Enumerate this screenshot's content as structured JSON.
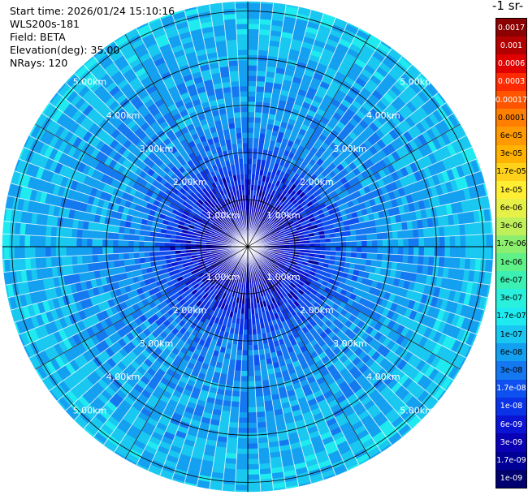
{
  "info": {
    "start_time": "Start time: 2026/01/24 15:10:16",
    "instrument": "WLS200s-181",
    "field": "Field: BETA",
    "elevation": "Elevation(deg): 35.00",
    "nrays": "NRays: 120"
  },
  "colorbar": {
    "unit_title": "-1 sr-",
    "labels": [
      "0.0017",
      "0.001",
      "0.0006",
      "0.0003",
      "0.00017",
      "0.0001",
      "6e-05",
      "3e-05",
      "1.7e-05",
      "1e-05",
      "6e-06",
      "3e-06",
      "1.7e-06",
      "1e-06",
      "6e-07",
      "3e-07",
      "1.7e-07",
      "1e-07",
      "6e-08",
      "3e-08",
      "1.7e-08",
      "1e-08",
      "6e-09",
      "3e-09",
      "1.7e-09",
      "1e-09"
    ],
    "colors": [
      "#8b0000",
      "#b30000",
      "#e00000",
      "#ff2a00",
      "#ff5500",
      "#ff7f00",
      "#ff9900",
      "#ffb300",
      "#ffd11a",
      "#ffee33",
      "#e6f046",
      "#bff05a",
      "#8cee6e",
      "#5ff087",
      "#3cf0b4",
      "#28f0dc",
      "#1eeaf0",
      "#19c8f0",
      "#14a0f0",
      "#1478f0",
      "#0f50f0",
      "#0a32e6",
      "#0a14d2",
      "#0a00b4",
      "#000096",
      "#00006e"
    ]
  },
  "chart_data": {
    "type": "heatmap",
    "projection": "polar PPI",
    "nrays": 120,
    "elevation_deg": 35.0,
    "field": "BETA",
    "range_rings_km": [
      1,
      2,
      3,
      4,
      5
    ],
    "range_ring_labels": [
      "1.00km",
      "2.00km",
      "3.00km",
      "4.00km",
      "5.00km"
    ],
    "max_range_km": 5.2,
    "color_scale": "log",
    "value_range": [
      1e-09,
      0.0017
    ],
    "radial_profile": [
      {
        "range_km": 0.0,
        "log10_beta": -8.4
      },
      {
        "range_km": 0.4,
        "log10_beta": -8.6
      },
      {
        "range_km": 0.8,
        "log10_beta": -8.4
      },
      {
        "range_km": 1.2,
        "log10_beta": -8.1
      },
      {
        "range_km": 1.6,
        "log10_beta": -7.9
      },
      {
        "range_km": 2.0,
        "log10_beta": -7.6
      },
      {
        "range_km": 2.5,
        "log10_beta": -7.4
      },
      {
        "range_km": 3.0,
        "log10_beta": -7.3
      },
      {
        "range_km": 3.5,
        "log10_beta": -7.3
      },
      {
        "range_km": 4.0,
        "log10_beta": -7.2
      },
      {
        "range_km": 4.5,
        "log10_beta": -7.1
      },
      {
        "range_km": 5.2,
        "log10_beta": -7.0
      }
    ],
    "grid_spokes_deg": [
      0,
      30,
      60,
      90,
      120,
      150,
      180,
      210,
      240,
      270,
      300,
      330
    ]
  }
}
